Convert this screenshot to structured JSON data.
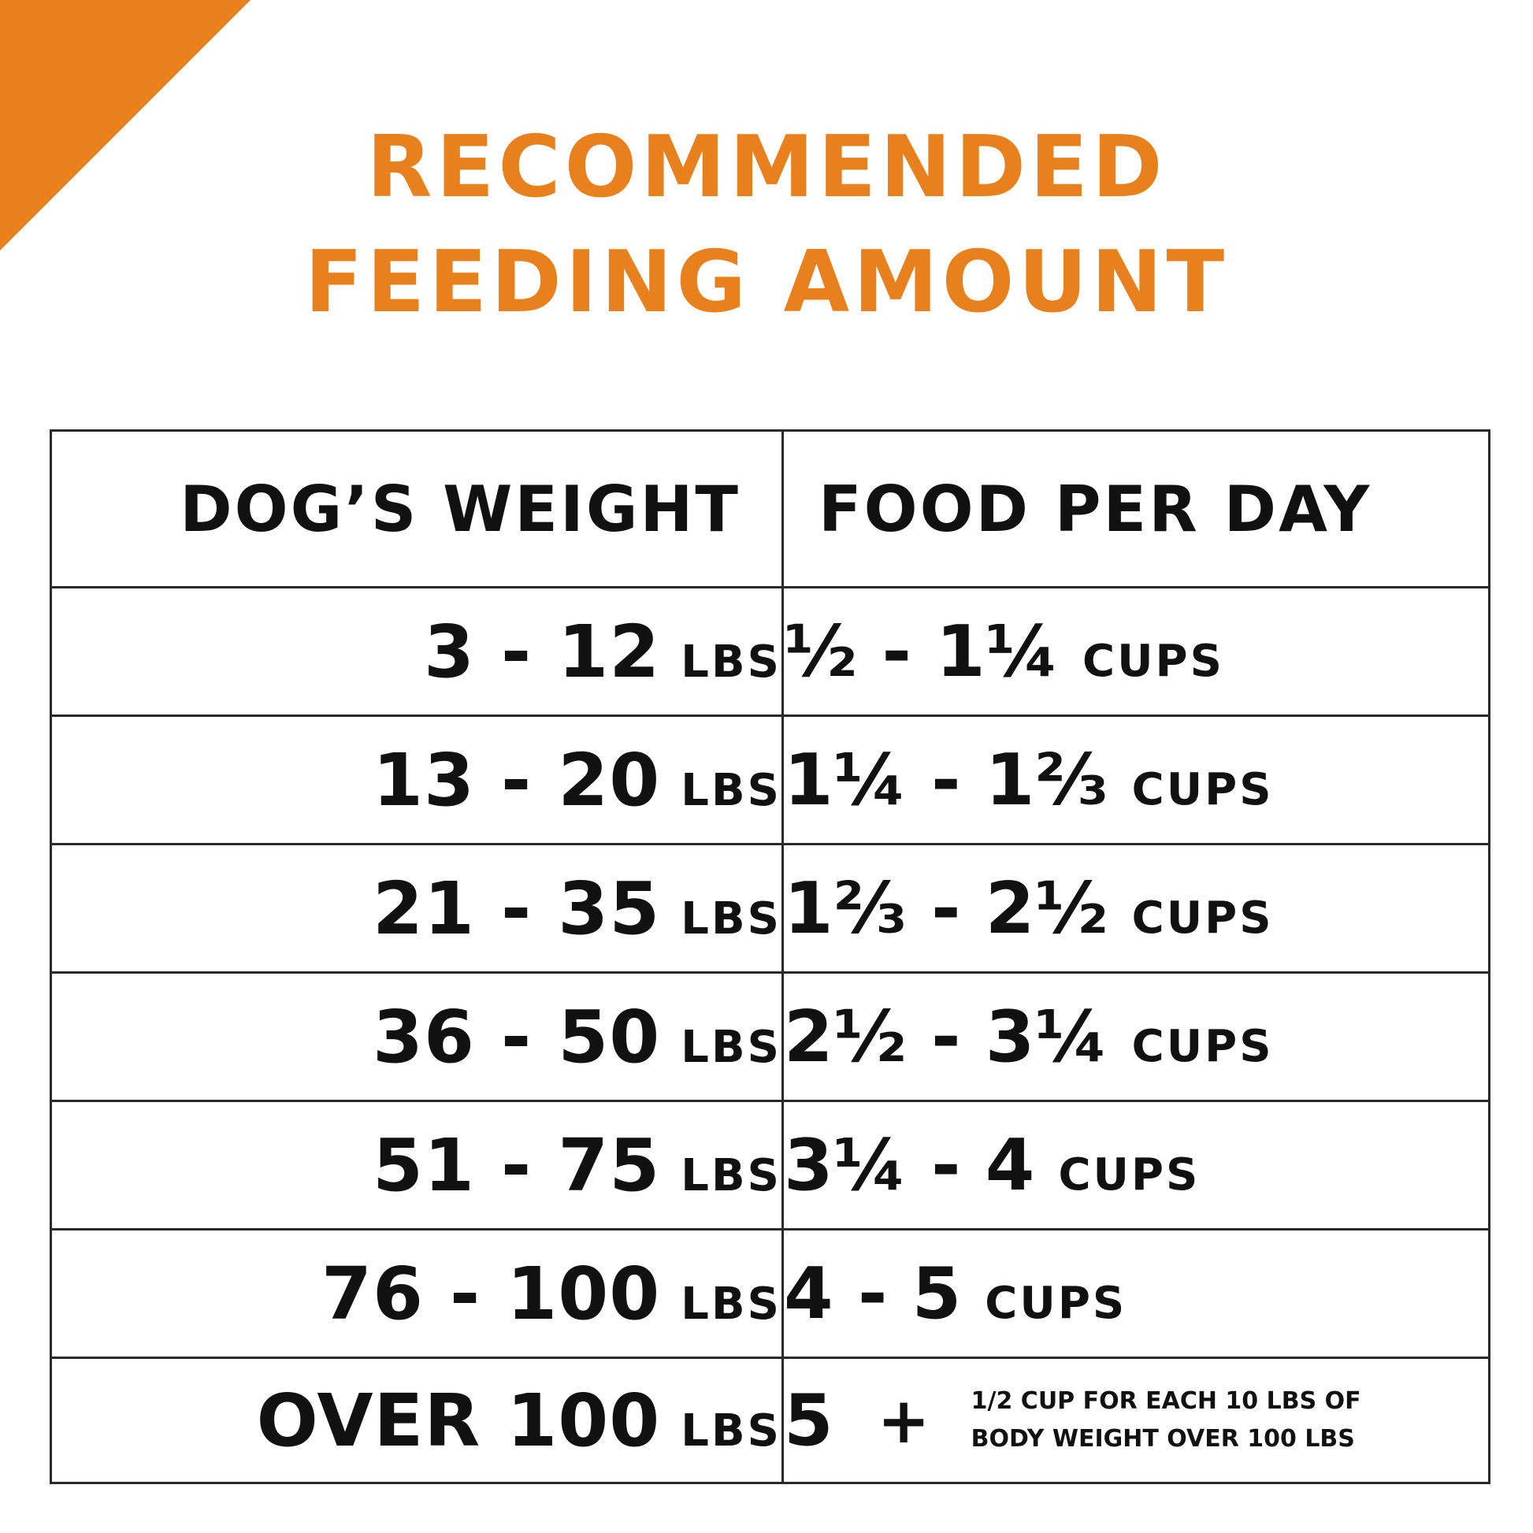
{
  "colors": {
    "accent": "#e8801e",
    "text": "#111111",
    "border": "#2a2a2a"
  },
  "title": {
    "line1": "RECOMMENDED",
    "line2": "FEEDING AMOUNT"
  },
  "table": {
    "headers": {
      "weight": "DOG’S WEIGHT",
      "food": "FOOD PER DAY"
    },
    "rows": [
      {
        "weight": "3 - 12",
        "weight_unit": "LBS",
        "amount": "½ - 1¼",
        "amount_unit": "CUPS"
      },
      {
        "weight": "13 - 20",
        "weight_unit": "LBS",
        "amount": "1¼ - 1⅔",
        "amount_unit": "CUPS"
      },
      {
        "weight": "21 - 35",
        "weight_unit": "LBS",
        "amount": "1⅔ - 2½",
        "amount_unit": "CUPS"
      },
      {
        "weight": "36 - 50",
        "weight_unit": "LBS",
        "amount": "2½ - 3¼",
        "amount_unit": "CUPS"
      },
      {
        "weight": "51 - 75",
        "weight_unit": "LBS",
        "amount": "3¼ - 4",
        "amount_unit": "CUPS"
      },
      {
        "weight": "76 - 100",
        "weight_unit": "LBS",
        "amount": "4 - 5",
        "amount_unit": "CUPS"
      }
    ],
    "last_row": {
      "weight": "OVER 100",
      "weight_unit": "LBS",
      "amount": "5",
      "plus": "+",
      "note_line1": "1/2 CUP FOR EACH 10 LBS OF",
      "note_line2": "BODY WEIGHT OVER 100 LBS"
    }
  }
}
